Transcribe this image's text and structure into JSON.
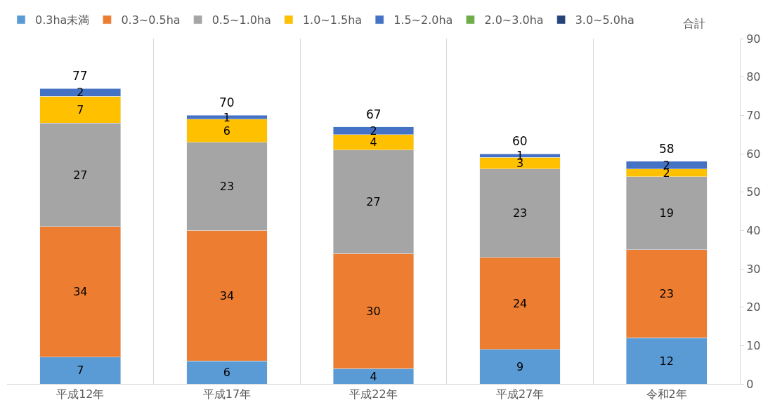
{
  "chart_data": {
    "type": "bar",
    "stacked": true,
    "categories": [
      "平成12年",
      "平成17年",
      "平成22年",
      "平成27年",
      "令和2年"
    ],
    "series": [
      {
        "name": "0.3ha未満",
        "color": "#5b9bd5",
        "values": [
          7,
          6,
          4,
          9,
          12
        ]
      },
      {
        "name": "0.3~0.5ha",
        "color": "#ed7d31",
        "values": [
          34,
          34,
          30,
          24,
          23
        ]
      },
      {
        "name": "0.5~1.0ha",
        "color": "#a5a5a5",
        "values": [
          27,
          23,
          27,
          23,
          19
        ]
      },
      {
        "name": "1.0~1.5ha",
        "color": "#ffc000",
        "values": [
          7,
          6,
          4,
          3,
          2
        ]
      },
      {
        "name": "1.5~2.0ha",
        "color": "#4472c4",
        "values": [
          2,
          1,
          2,
          1,
          2
        ]
      },
      {
        "name": "2.0~3.0ha",
        "color": "#70ad47",
        "values": [
          null,
          null,
          null,
          null,
          null
        ]
      },
      {
        "name": "3.0~5.0ha",
        "color": "#264478",
        "values": [
          null,
          null,
          null,
          null,
          null
        ]
      }
    ],
    "totals": [
      "77",
      "70",
      "67",
      "60",
      "58"
    ],
    "annotations": [
      "合計"
    ],
    "ylim": [
      0,
      90
    ],
    "yticks": [
      0,
      10,
      20,
      30,
      40,
      50,
      60,
      70,
      80,
      90
    ],
    "data_labels": true,
    "grid": "x",
    "legend": "top"
  }
}
